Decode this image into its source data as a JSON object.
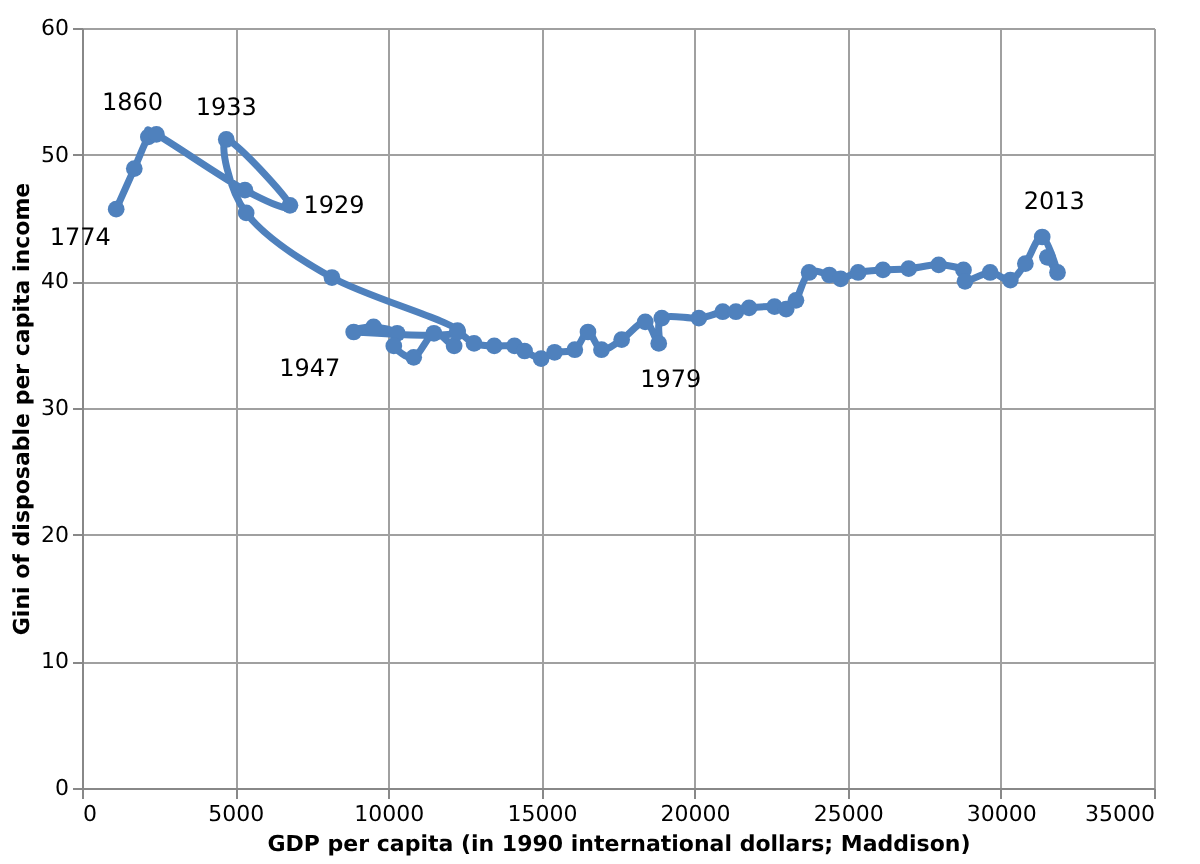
{
  "chart_data": {
    "type": "line",
    "xlabel": "GDP per capita (in 1990 international dollars; Maddison)",
    "ylabel": "Gini of disposable per capita income",
    "x": [
      1116,
      1707,
      2167,
      2430,
      5320,
      6790,
      4710,
      5360,
      8160,
      12260,
      8870,
      9520,
      10290,
      10180,
      10830,
      11490,
      12150,
      12260,
      12800,
      13460,
      14120,
      14450,
      14990,
      15430,
      16090,
      16520,
      16960,
      17620,
      18390,
      18830,
      18930,
      20140,
      20920,
      21350,
      21780,
      22610,
      22990,
      23310,
      23740,
      24400,
      24770,
      25340,
      26150,
      26990,
      27970,
      28780,
      28830,
      29650,
      30310,
      30800,
      31350,
      31850,
      31520
    ],
    "series": [
      {
        "color": "#4f81bd",
        "values": [
          45.7,
          48.9,
          51.4,
          51.6,
          47.2,
          46.0,
          51.2,
          45.4,
          40.3,
          36.1,
          36.0,
          36.4,
          35.9,
          34.9,
          34.0,
          35.9,
          34.9,
          36.0,
          35.1,
          34.9,
          34.9,
          34.5,
          33.9,
          34.4,
          34.6,
          36.0,
          34.6,
          35.4,
          36.8,
          35.1,
          37.1,
          37.1,
          37.6,
          37.6,
          37.9,
          38.0,
          37.8,
          38.5,
          40.7,
          40.5,
          40.2,
          40.7,
          40.9,
          41.0,
          41.3,
          40.9,
          40.0,
          40.7,
          40.1,
          41.4,
          43.5,
          40.7,
          41.9
        ]
      }
    ],
    "xlim": [
      0,
      35000
    ],
    "xticks": [
      0,
      5000,
      10000,
      15000,
      20000,
      25000,
      30000,
      35000
    ],
    "ylim": [
      0,
      60
    ],
    "yticks": [
      0,
      10,
      20,
      30,
      40,
      50,
      60
    ],
    "grid": true,
    "marker": "circle",
    "line_style": "solid",
    "annotations": [
      {
        "text": "1774",
        "x": 1116,
        "y": 45.7
      },
      {
        "text": "1860",
        "x": 2430,
        "y": 51.6
      },
      {
        "text": "1933",
        "x": 4710,
        "y": 51.2
      },
      {
        "text": "1929",
        "x": 6790,
        "y": 46.0
      },
      {
        "text": "1947",
        "x": 8870,
        "y": 36.0
      },
      {
        "text": "1979",
        "x": 18830,
        "y": 35.1
      },
      {
        "text": "2013",
        "x": 31350,
        "y": 43.5
      }
    ]
  }
}
